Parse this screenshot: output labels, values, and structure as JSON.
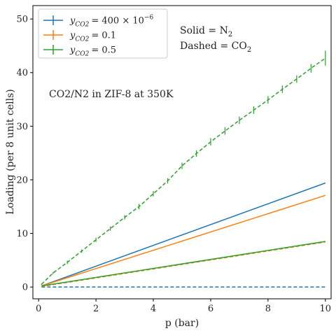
{
  "chart_data": {
    "type": "line",
    "title": "",
    "xlabel": "p (bar)",
    "ylabel": "Loading (per 8 unit cells)",
    "xlim": [
      -0.2,
      10.2
    ],
    "ylim": [
      -2.2,
      52.5
    ],
    "xticks": [
      0,
      2,
      4,
      6,
      8,
      10
    ],
    "yticks": [
      0,
      10,
      20,
      30,
      40,
      50
    ],
    "grid": false,
    "legend_position": "top-left",
    "annotations": {
      "solid_prefix": "Solid = N",
      "solid_sub": "2",
      "dashed_prefix": "Dashed = CO",
      "dashed_sub": "2",
      "system_label": "CO2/N2 in ZIF-8 at 350K"
    },
    "legend": [
      {
        "var": "y",
        "sub": "CO2",
        "value": "= 400 × 10",
        "sup": "−6",
        "color": "#1f77b4"
      },
      {
        "var": "y",
        "sub": "CO2",
        "value": "= 0.1",
        "sup": "",
        "color": "#ff7f0e"
      },
      {
        "var": "y",
        "sub": "CO2",
        "value": "= 0.5",
        "sup": "",
        "color": "#2ca02c"
      }
    ],
    "series": [
      {
        "color": "#1f77b4",
        "linestyle": "solid",
        "errorbars": false,
        "x": [
          0.1,
          10
        ],
        "y": [
          0.2,
          19.4
        ]
      },
      {
        "color": "#1f77b4",
        "linestyle": "dashed",
        "errorbars": false,
        "x": [
          0.1,
          10
        ],
        "y": [
          0.0,
          0.0
        ]
      },
      {
        "color": "#ff7f0e",
        "linestyle": "solid",
        "errorbars": false,
        "x": [
          0.1,
          10
        ],
        "y": [
          0.2,
          17.1
        ]
      },
      {
        "color": "#ff7f0e",
        "linestyle": "dashed",
        "errorbars": false,
        "x": [
          0.1,
          10
        ],
        "y": [
          0.1,
          8.4
        ]
      },
      {
        "color": "#2ca02c",
        "linestyle": "solid",
        "errorbars": false,
        "x": [
          0.1,
          10
        ],
        "y": [
          0.2,
          8.5
        ]
      },
      {
        "color": "#2ca02c",
        "linestyle": "dashed",
        "errorbars": true,
        "x": [
          0.1,
          0.5,
          1,
          1.5,
          2,
          2.5,
          3,
          3.5,
          4,
          4.5,
          5,
          5.5,
          6,
          6.5,
          7,
          7.5,
          8,
          8.5,
          9,
          9.5,
          10
        ],
        "y": [
          0.5,
          2.6,
          4.6,
          6.7,
          8.8,
          10.9,
          13.0,
          15.0,
          17.4,
          19.8,
          22.6,
          24.9,
          27.1,
          29.1,
          31.1,
          33.0,
          34.9,
          36.9,
          38.8,
          40.8,
          42.7
        ],
        "yerr": [
          0.1,
          0.2,
          0.3,
          0.3,
          0.4,
          0.4,
          0.4,
          0.5,
          0.5,
          0.5,
          0.6,
          0.6,
          0.7,
          0.7,
          0.7,
          0.7,
          0.7,
          0.7,
          0.7,
          0.8,
          1.4
        ]
      }
    ]
  }
}
